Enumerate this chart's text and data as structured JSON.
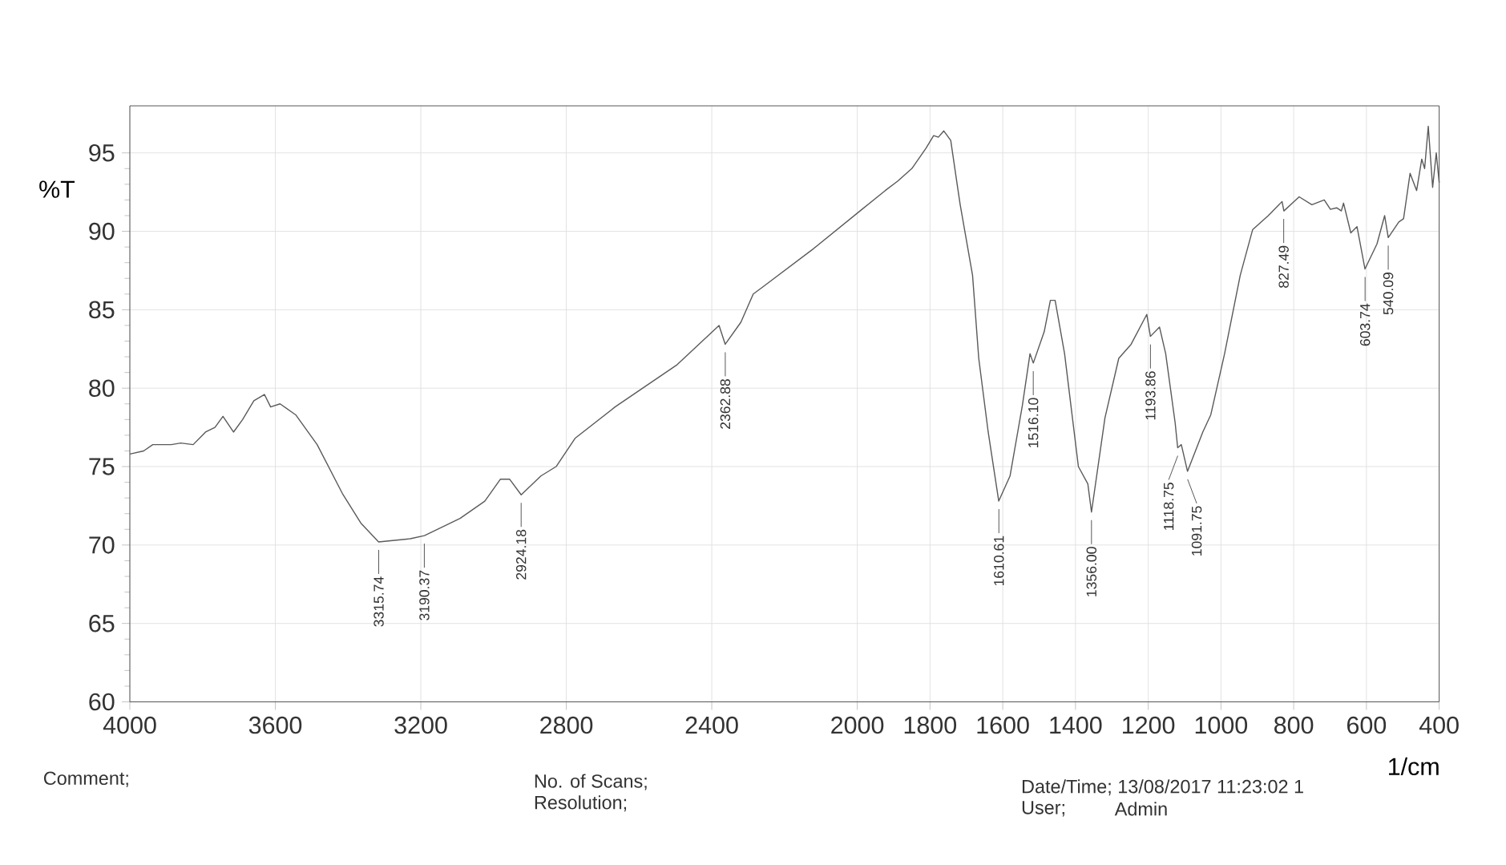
{
  "chart_data": {
    "type": "line",
    "xlabel": "1/cm",
    "ylabel": "%T",
    "xlim": [
      4000,
      400
    ],
    "ylim": [
      60,
      98
    ],
    "xticks": [
      4000,
      3600,
      3200,
      2800,
      2400,
      2000,
      1800,
      1600,
      1400,
      1200,
      1000,
      800,
      600,
      400
    ],
    "yticks": [
      60,
      65,
      70,
      75,
      80,
      85,
      90,
      95
    ],
    "grid": true,
    "series": [
      {
        "color": "#5a5a5a",
        "x": [
          4000,
          3962,
          3937,
          3886,
          3860,
          3826,
          3792,
          3766,
          3744,
          3715,
          3690,
          3659,
          3630,
          3613,
          3587,
          3544,
          3485,
          3416,
          3365,
          3316,
          3229,
          3190,
          3092,
          3024,
          2981,
          2956,
          2924,
          2870,
          2828,
          2776,
          2666,
          2495,
          2380,
          2363,
          2320,
          2286,
          2257,
          2120,
          1987,
          1923,
          1889,
          1850,
          1811,
          1790,
          1777,
          1762,
          1743,
          1726,
          1717,
          1683,
          1666,
          1640,
          1611,
          1580,
          1546,
          1525,
          1516,
          1486,
          1469,
          1456,
          1430,
          1392,
          1366,
          1356,
          1319,
          1281,
          1247,
          1204,
          1194,
          1169,
          1152,
          1126,
          1119,
          1109,
          1092,
          1050,
          1028,
          990,
          947,
          913,
          870,
          832,
          827,
          785,
          750,
          716,
          699,
          682,
          669,
          663,
          643,
          626,
          604,
          571,
          550,
          540,
          511,
          498,
          480,
          462,
          448,
          440,
          430,
          418,
          408,
          400
        ],
        "values": [
          75.8,
          76.0,
          76.4,
          76.4,
          76.5,
          76.4,
          77.2,
          77.5,
          78.2,
          77.2,
          78.0,
          79.2,
          79.6,
          78.8,
          79.0,
          78.3,
          76.4,
          73.3,
          71.4,
          70.2,
          70.4,
          70.6,
          71.7,
          72.8,
          74.2,
          74.2,
          73.2,
          74.4,
          75.0,
          76.8,
          78.8,
          81.5,
          84.0,
          82.8,
          84.2,
          86.0,
          86.5,
          88.9,
          91.4,
          92.6,
          93.2,
          94.0,
          95.3,
          96.1,
          96.0,
          96.4,
          95.8,
          93.1,
          91.7,
          87.2,
          81.9,
          77.2,
          72.8,
          74.4,
          78.9,
          82.2,
          81.6,
          83.6,
          85.6,
          85.6,
          82.2,
          75.0,
          73.9,
          72.1,
          78.1,
          81.9,
          82.8,
          84.7,
          83.3,
          83.9,
          82.2,
          77.8,
          76.2,
          76.4,
          74.7,
          77.2,
          78.3,
          82.2,
          87.2,
          90.1,
          91.0,
          91.9,
          91.3,
          92.2,
          91.7,
          92.0,
          91.4,
          91.5,
          91.3,
          91.8,
          89.9,
          90.3,
          87.6,
          89.2,
          91.0,
          89.6,
          90.6,
          90.8,
          93.7,
          92.6,
          94.6,
          94.0,
          96.7,
          92.8,
          95.0,
          93.1
        ]
      }
    ],
    "annotations": [
      {
        "text": "3315.74",
        "x": 3315.74,
        "y": 70.2
      },
      {
        "text": "3190.37",
        "x": 3190.37,
        "y": 70.6
      },
      {
        "text": "2924.18",
        "x": 2924.18,
        "y": 73.2
      },
      {
        "text": "2362.88",
        "x": 2362.88,
        "y": 82.8
      },
      {
        "text": "1610.61",
        "x": 1610.61,
        "y": 72.8
      },
      {
        "text": "1516.10",
        "x": 1516.1,
        "y": 81.6
      },
      {
        "text": "1356.00",
        "x": 1356.0,
        "y": 72.1
      },
      {
        "text": "1193.86",
        "x": 1193.86,
        "y": 83.3
      },
      {
        "text": "1118.75",
        "x": 1118.75,
        "y": 76.2
      },
      {
        "text": "1091.75",
        "x": 1091.75,
        "y": 74.7
      },
      {
        "text": "827.49",
        "x": 827.49,
        "y": 91.3
      },
      {
        "text": "603.74",
        "x": 603.74,
        "y": 87.6
      },
      {
        "text": "540.09",
        "x": 540.09,
        "y": 89.6
      },
      "Comment;",
      "No. of Scans;",
      "Resolution;",
      "Date/Time; 13/08/2017 11:23:02 1",
      "User;",
      "Admin"
    ]
  }
}
